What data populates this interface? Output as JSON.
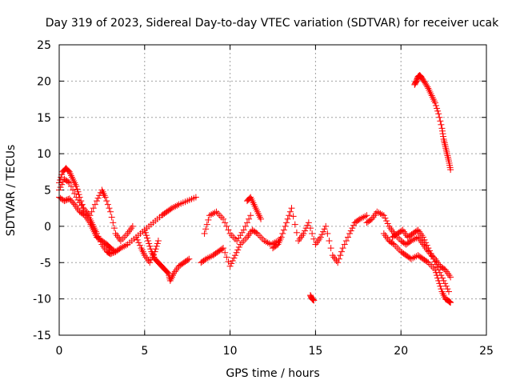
{
  "chart_data": {
    "type": "scatter",
    "title": "Day 319 of 2023, Sidereal Day-to-day VTEC variation (SDTVAR) for receiver ucak",
    "xlabel": "GPS time / hours",
    "ylabel": "SDTVAR / TECUs",
    "xlim": [
      0,
      25
    ],
    "ylim": [
      -15,
      25
    ],
    "xticks": [
      0,
      5,
      10,
      15,
      20,
      25
    ],
    "yticks": [
      -15,
      -10,
      -5,
      0,
      5,
      10,
      15,
      20,
      25
    ],
    "xtick_labels": [
      "0",
      "5",
      "10",
      "15",
      "20",
      "25"
    ],
    "ytick_labels": [
      "-15",
      "-10",
      "-5",
      "0",
      "5",
      "10",
      "15",
      "20",
      "25"
    ],
    "grid": true,
    "marker": "+",
    "color": "#ff0000",
    "series": [
      {
        "name": "SDTVAR",
        "segments": [
          {
            "x": [
              0.0,
              0.2,
              0.4,
              0.6,
              0.8,
              1.0,
              1.2,
              1.5,
              1.8,
              2.0,
              2.2,
              2.5,
              2.8,
              3.0,
              3.3,
              3.6,
              4.0,
              4.5,
              5.0,
              5.5,
              6.0,
              6.3,
              6.6,
              7.0,
              7.5,
              8.0
            ],
            "y": [
              6.0,
              7.5,
              8.0,
              7.5,
              6.5,
              5.5,
              4.0,
              2.0,
              1.0,
              0.0,
              -1.0,
              -2.5,
              -3.5,
              -3.8,
              -3.5,
              -3.0,
              -2.5,
              -1.5,
              -0.5,
              0.5,
              1.5,
              2.0,
              2.5,
              3.0,
              3.5,
              4.0
            ]
          },
          {
            "x": [
              0.0,
              0.3,
              0.6,
              1.0,
              1.4,
              1.8,
              2.2,
              2.5,
              2.7,
              3.0,
              3.3,
              3.6,
              4.0,
              4.3
            ],
            "y": [
              5.0,
              6.5,
              6.0,
              4.0,
              2.5,
              1.5,
              3.5,
              5.0,
              4.0,
              2.0,
              -1.0,
              -2.0,
              -1.0,
              0.0
            ]
          },
          {
            "x": [
              0.0,
              0.3,
              0.6,
              0.9,
              1.2,
              1.5,
              1.8,
              2.0,
              2.2,
              2.5,
              2.8,
              3.0,
              3.3
            ],
            "y": [
              4.0,
              3.5,
              3.8,
              3.0,
              2.0,
              1.5,
              0.5,
              -0.5,
              -1.5,
              -2.0,
              -2.5,
              -3.0,
              -3.5
            ]
          },
          {
            "x": [
              5.0,
              5.2,
              5.4,
              5.6,
              5.8,
              6.0,
              6.2,
              6.4,
              6.5,
              6.7,
              7.0,
              7.3,
              7.6
            ],
            "y": [
              -0.5,
              -2.0,
              -3.5,
              -4.5,
              -5.0,
              -5.5,
              -6.0,
              -6.5,
              -7.5,
              -6.5,
              -5.5,
              -5.0,
              -4.5
            ]
          },
          {
            "x": [
              4.5,
              4.8,
              5.0,
              5.3,
              5.6,
              5.8
            ],
            "y": [
              -1.5,
              -3.0,
              -4.0,
              -5.0,
              -3.5,
              -2.0
            ]
          },
          {
            "x": [
              8.3,
              8.6,
              9.0,
              9.3,
              9.6,
              10.0,
              10.3,
              10.6,
              11.0,
              11.3,
              11.6,
              12.0,
              12.4,
              12.8
            ],
            "y": [
              -5.0,
              -4.5,
              -4.0,
              -3.5,
              -3.0,
              -5.5,
              -4.0,
              -2.5,
              -1.5,
              -0.5,
              -1.0,
              -2.0,
              -2.5,
              -2.0
            ]
          },
          {
            "x": [
              8.5,
              8.8,
              9.2,
              9.6,
              10.0,
              10.4,
              10.8,
              11.2
            ],
            "y": [
              -1.0,
              1.5,
              2.0,
              1.0,
              -1.0,
              -2.0,
              -0.5,
              1.5
            ]
          },
          {
            "x": [
              11.0,
              11.2,
              11.4,
              11.6,
              11.8
            ],
            "y": [
              3.5,
              4.0,
              3.0,
              2.0,
              1.0
            ]
          },
          {
            "x": [
              12.5,
              12.8,
              13.0,
              13.3,
              13.6,
              14.0,
              14.3,
              14.6,
              15.0,
              15.3,
              15.6,
              16.0,
              16.3,
              16.6,
              17.0,
              17.3,
              17.6,
              18.0
            ],
            "y": [
              -3.0,
              -2.5,
              -1.5,
              0.5,
              2.5,
              -2.0,
              -1.0,
              0.5,
              -2.5,
              -1.5,
              0.0,
              -4.0,
              -5.0,
              -3.0,
              -1.0,
              0.5,
              1.0,
              1.5
            ]
          },
          {
            "x": [
              14.7,
              14.8,
              14.9
            ],
            "y": [
              -9.5,
              -10.0,
              -10.2
            ]
          },
          {
            "x": [
              18.0,
              18.3,
              18.6,
              19.0,
              19.3,
              19.6,
              20.0,
              20.3,
              20.6,
              21.0,
              21.3,
              21.6,
              22.0,
              22.3,
              22.6,
              22.9
            ],
            "y": [
              0.5,
              1.0,
              2.0,
              1.5,
              0.0,
              -1.0,
              -2.0,
              -2.5,
              -2.0,
              -1.5,
              -2.5,
              -3.5,
              -4.5,
              -5.5,
              -6.0,
              -7.0
            ]
          },
          {
            "x": [
              19.0,
              19.3,
              19.6,
              20.0,
              20.3,
              20.6,
              21.0,
              21.3,
              21.6,
              22.0,
              22.2,
              22.4,
              22.6,
              22.8,
              22.9
            ],
            "y": [
              -1.0,
              -2.0,
              -2.5,
              -3.5,
              -4.0,
              -4.5,
              -4.0,
              -4.5,
              -5.0,
              -6.0,
              -7.5,
              -9.0,
              -10.0,
              -10.3,
              -10.5
            ]
          },
          {
            "x": [
              19.5,
              19.8,
              20.1,
              20.4,
              20.7,
              21.0,
              21.3,
              21.6,
              21.9,
              22.2,
              22.5,
              22.8
            ],
            "y": [
              -1.5,
              -1.0,
              -0.5,
              -1.5,
              -1.0,
              -0.5,
              -1.5,
              -3.0,
              -4.5,
              -6.0,
              -7.5,
              -9.0
            ]
          },
          {
            "x": [
              20.8,
              20.9,
              21.0,
              21.1,
              21.2,
              21.4,
              21.6,
              21.8,
              22.0,
              22.2,
              22.4,
              22.5,
              22.6,
              22.7,
              22.8,
              22.9
            ],
            "y": [
              19.5,
              20.0,
              20.6,
              20.8,
              20.5,
              19.8,
              19.0,
              18.0,
              17.0,
              15.5,
              13.5,
              12.0,
              11.0,
              10.0,
              9.0,
              7.8
            ]
          }
        ]
      }
    ]
  }
}
